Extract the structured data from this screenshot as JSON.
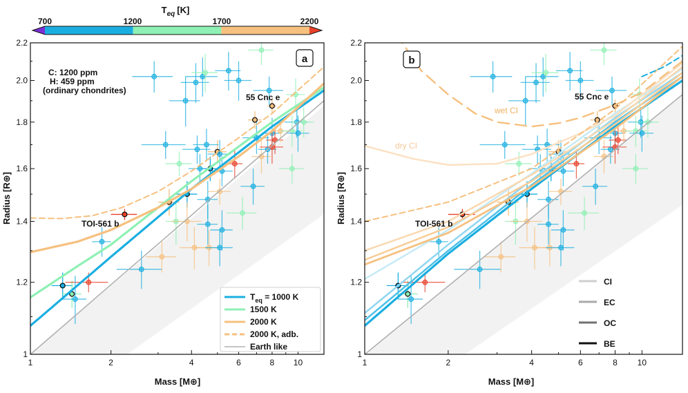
{
  "colorbar": {
    "title": "T_eq [K]",
    "title_main": "T",
    "title_sub": "eq",
    "title_unit": "[K]",
    "ticks": [
      "700",
      "1200",
      "1700",
      "2200"
    ],
    "segments": [
      {
        "from": 700,
        "to": 1200,
        "color": "#1aaee0"
      },
      {
        "from": 1200,
        "to": 1700,
        "color": "#8ef0b4"
      },
      {
        "from": 1700,
        "to": 2200,
        "color": "#f6c07f"
      }
    ],
    "extend_low_color": "#7b2fd6",
    "extend_high_color": "#e8412a"
  },
  "chart_data": [
    {
      "type": "scatter",
      "panel_label": "a",
      "xlabel": "Mass [M⊕]",
      "ylabel": "Radius [R⊕]",
      "xscale": "log",
      "yscale": "log",
      "xlim": [
        1,
        12.5
      ],
      "ylim": [
        1,
        2.2
      ],
      "xticks": [
        "1",
        "2",
        "4",
        "6",
        "8",
        "10"
      ],
      "yticks": [
        "1",
        "1.2",
        "1.4",
        "1.6",
        "1.8",
        "2.0",
        "2.2"
      ],
      "composition_note": [
        "C: 1200 ppm",
        "H: 459 ppm",
        "(ordinary chondrites)"
      ],
      "annotations": [
        "55 Cnc e",
        "TOI-561 b"
      ],
      "legend": {
        "position": "bottom-right",
        "entries": [
          {
            "label_main": "T",
            "label_sub": "eq",
            "label_rest": " = 1000 K",
            "color": "#1aaee0",
            "dash": "solid"
          },
          {
            "label_main": "1500 K",
            "label_sub": "",
            "label_rest": "",
            "color": "#8ef0b4",
            "dash": "solid"
          },
          {
            "label_main": "2000 K",
            "label_sub": "",
            "label_rest": "",
            "color": "#f6c07f",
            "dash": "solid"
          },
          {
            "label_main": "2000 K, adb.",
            "label_sub": "",
            "label_rest": "",
            "color": "#f6c07f",
            "dash": "dashed"
          },
          {
            "label_main": "Earth like",
            "label_sub": "",
            "label_rest": "",
            "color": "#b0b0b0",
            "dash": "solid"
          }
        ]
      },
      "series": [
        {
          "name": "Earth like",
          "color": "#b0b0b0",
          "width": 1.6,
          "dash": "solid",
          "x": [
            1,
            12.5
          ],
          "y": [
            1.0,
            1.9
          ]
        },
        {
          "name": "Teq = 1000 K",
          "color": "#1aaee0",
          "width": 3.2,
          "dash": "solid",
          "x": [
            1,
            2,
            4,
            8,
            12.5
          ],
          "y": [
            1.075,
            1.28,
            1.52,
            1.78,
            1.95
          ]
        },
        {
          "name": "1500 K",
          "color": "#8ef0b4",
          "width": 3.2,
          "dash": "solid",
          "x": [
            1,
            1.5,
            2,
            4,
            8,
            12.5
          ],
          "y": [
            1.155,
            1.25,
            1.32,
            1.55,
            1.8,
            1.965
          ]
        },
        {
          "name": "2000 K",
          "color": "#f6c07f",
          "width": 3.2,
          "dash": "solid",
          "x": [
            1,
            1.5,
            2,
            3,
            4,
            6,
            8,
            12.5
          ],
          "y": [
            1.295,
            1.33,
            1.37,
            1.45,
            1.52,
            1.65,
            1.76,
            1.985
          ]
        },
        {
          "name": "2000 K, adb.",
          "color": "#f6c07f",
          "width": 2,
          "dash": "dashed",
          "x": [
            1,
            1.3,
            1.7,
            2.2,
            3,
            4,
            6,
            8,
            12.5
          ],
          "y": [
            1.412,
            1.41,
            1.42,
            1.45,
            1.51,
            1.59,
            1.73,
            1.84,
            2.07
          ]
        }
      ]
    },
    {
      "type": "scatter",
      "panel_label": "b",
      "xlabel": "Mass [M⊕]",
      "ylabel": "Radius [R⊕]",
      "xscale": "log",
      "yscale": "log",
      "xlim": [
        1,
        14
      ],
      "ylim": [
        1,
        2.2
      ],
      "xticks": [
        "1",
        "2",
        "4",
        "6",
        "8",
        "10"
      ],
      "yticks": [
        "1",
        "1.2",
        "1.4",
        "1.6",
        "1.8",
        "2.0",
        "2.2"
      ],
      "annotations": [
        "55 Cnc e",
        "TOI-561 b",
        "wet CI",
        "dry CI"
      ],
      "legend": {
        "position": "bottom-right",
        "entries": [
          {
            "label": "CI",
            "color": "#cfcfcf"
          },
          {
            "label": "EC",
            "color": "#a9a9a9"
          },
          {
            "label": "OC",
            "color": "#707070"
          },
          {
            "label": "BE",
            "color": "#111111"
          }
        ]
      },
      "series": [
        {
          "name": "Earth like",
          "color": "#b0b0b0",
          "width": 1.6,
          "dash": "solid",
          "x": [
            1,
            14
          ],
          "y": [
            1.0,
            1.93
          ]
        },
        {
          "name": "1000 K BE",
          "color": "#1aaee0",
          "width": 3.2,
          "dash": "solid",
          "x": [
            1,
            2,
            4,
            8,
            14
          ],
          "y": [
            1.075,
            1.29,
            1.52,
            1.78,
            2.0
          ]
        },
        {
          "name": "1000 K OC",
          "color": "#4cc0e8",
          "width": 2.5,
          "dash": "solid",
          "x": [
            1,
            2,
            4,
            8,
            14
          ],
          "y": [
            1.09,
            1.3,
            1.535,
            1.8,
            2.02
          ]
        },
        {
          "name": "1000 K EC",
          "color": "#8fd6f0",
          "width": 2.5,
          "dash": "solid",
          "x": [
            1,
            2,
            4,
            8,
            14
          ],
          "y": [
            1.11,
            1.32,
            1.555,
            1.82,
            2.04
          ]
        },
        {
          "name": "1000 K CI",
          "color": "#c6eaf7",
          "width": 2.5,
          "dash": "solid",
          "x": [
            1,
            2,
            4,
            8,
            14
          ],
          "y": [
            1.21,
            1.37,
            1.58,
            1.84,
            2.06
          ]
        },
        {
          "name": "2000 K BE",
          "color": "#f6c07f",
          "width": 2.8,
          "dash": "solid",
          "x": [
            1,
            2,
            4,
            8,
            14
          ],
          "y": [
            1.255,
            1.36,
            1.53,
            1.77,
            2.02
          ]
        },
        {
          "name": "2000 K OC",
          "color": "#f8cc96",
          "width": 2.5,
          "dash": "solid",
          "x": [
            1,
            2,
            4,
            8,
            14
          ],
          "y": [
            1.27,
            1.38,
            1.55,
            1.79,
            2.04
          ]
        },
        {
          "name": "2000 K EC",
          "color": "#fad8b0",
          "width": 2.5,
          "dash": "solid",
          "x": [
            1,
            2,
            4,
            8,
            14
          ],
          "y": [
            1.3,
            1.4,
            1.575,
            1.81,
            2.07
          ]
        },
        {
          "name": "dry CI",
          "color": "#fbe1c4",
          "width": 2.5,
          "dash": "solid",
          "x": [
            1,
            1.5,
            2,
            3,
            4,
            6,
            8,
            14
          ],
          "y": [
            1.695,
            1.64,
            1.615,
            1.62,
            1.66,
            1.75,
            1.83,
            2.09
          ]
        },
        {
          "name": "wet CI",
          "color": "#f6c07f",
          "width": 2.4,
          "dash": "dashed",
          "x": [
            1.3,
            1.6,
            2,
            2.5,
            3,
            4,
            5,
            6,
            8,
            10,
            14
          ],
          "y": [
            2.25,
            2.05,
            1.93,
            1.84,
            1.8,
            1.78,
            1.795,
            1.82,
            1.88,
            1.94,
            2.1
          ]
        },
        {
          "name": "adb. dashed",
          "color": "#f6c07f",
          "width": 2,
          "dash": "dashed",
          "x": [
            1,
            2,
            4,
            8,
            14
          ],
          "y": [
            1.4,
            1.47,
            1.6,
            1.86,
            2.18
          ]
        },
        {
          "name": "teal dashed",
          "color": "#1aaee0",
          "width": 2,
          "dash": "dashed",
          "x": [
            10,
            12,
            14
          ],
          "y": [
            2.02,
            2.07,
            2.13
          ]
        }
      ]
    }
  ],
  "planets": [
    {
      "m": 2.25,
      "r": 1.425,
      "dm": 0.25,
      "dr": 0.02,
      "c": "#e8412a",
      "hl": true
    },
    {
      "m": 8.0,
      "r": 1.875,
      "dm": 0.3,
      "dr": 0.03,
      "c": "#f6c07f",
      "hl": true
    },
    {
      "m": 6.9,
      "r": 1.81,
      "dm": 0.4,
      "dr": 0.04,
      "c": "#f6c07f",
      "hl": true
    },
    {
      "m": 5.0,
      "r": 1.67,
      "dm": 0.4,
      "dr": 0.05,
      "c": "#f6c07f",
      "hl": true
    },
    {
      "m": 4.7,
      "r": 1.6,
      "dm": 0.35,
      "dr": 0.05,
      "c": "#1aaee0",
      "hl": true
    },
    {
      "m": 3.85,
      "r": 1.5,
      "dm": 0.35,
      "dr": 0.05,
      "c": "#1aaee0",
      "hl": true
    },
    {
      "m": 3.3,
      "r": 1.47,
      "dm": 0.3,
      "dr": 0.05,
      "c": "#f6c07f",
      "hl": true
    },
    {
      "m": 1.32,
      "r": 1.19,
      "dm": 0.12,
      "dr": 0.04,
      "c": "#1aaee0",
      "hl": true
    },
    {
      "m": 1.43,
      "r": 1.165,
      "dm": 0.12,
      "dr": 0.04,
      "c": "#8ef0b4",
      "hl": true
    },
    {
      "m": 1.65,
      "r": 1.2,
      "dm": 0.3,
      "dr": 0.03,
      "c": "#e8412a",
      "hl": false
    },
    {
      "m": 1.85,
      "r": 1.33,
      "dm": 0.15,
      "dr": 0.05,
      "c": "#1aaee0",
      "hl": false
    },
    {
      "m": 1.47,
      "r": 1.15,
      "dm": 0.15,
      "dr": 0.07,
      "c": "#1aaee0",
      "hl": false
    },
    {
      "m": 2.6,
      "r": 1.24,
      "dm": 0.5,
      "dr": 0.06,
      "c": "#1aaee0",
      "hl": false
    },
    {
      "m": 3.1,
      "r": 1.28,
      "dm": 0.4,
      "dr": 0.05,
      "c": "#f6c07f",
      "hl": false
    },
    {
      "m": 2.9,
      "r": 2.02,
      "dm": 0.5,
      "dr": 0.08,
      "c": "#1aaee0",
      "hl": false
    },
    {
      "m": 3.2,
      "r": 1.7,
      "dm": 0.6,
      "dr": 0.06,
      "c": "#1aaee0",
      "hl": false
    },
    {
      "m": 3.6,
      "r": 1.62,
      "dm": 0.4,
      "dr": 0.05,
      "c": "#8ef0b4",
      "hl": false
    },
    {
      "m": 3.5,
      "r": 1.4,
      "dm": 0.3,
      "dr": 0.08,
      "c": "#8ef0b4",
      "hl": false
    },
    {
      "m": 3.85,
      "r": 1.4,
      "dm": 0.5,
      "dr": 0.07,
      "c": "#f6c07f",
      "hl": false
    },
    {
      "m": 3.8,
      "r": 1.9,
      "dm": 0.5,
      "dr": 0.12,
      "c": "#1aaee0",
      "hl": false
    },
    {
      "m": 4.1,
      "r": 1.31,
      "dm": 0.5,
      "dr": 0.07,
      "c": "#f6c07f",
      "hl": false
    },
    {
      "m": 4.15,
      "r": 1.99,
      "dm": 0.5,
      "dr": 0.1,
      "c": "#1aaee0",
      "hl": false
    },
    {
      "m": 4.2,
      "r": 1.68,
      "dm": 0.5,
      "dr": 0.06,
      "c": "#1aaee0",
      "hl": false
    },
    {
      "m": 4.3,
      "r": 1.6,
      "dm": 0.4,
      "dr": 0.06,
      "c": "#1aaee0",
      "hl": false
    },
    {
      "m": 4.4,
      "r": 2.02,
      "dm": 0.6,
      "dr": 0.1,
      "c": "#1aaee0",
      "hl": false
    },
    {
      "m": 4.5,
      "r": 2.04,
      "dm": 0.5,
      "dr": 0.1,
      "c": "#8ef0b4",
      "hl": false
    },
    {
      "m": 4.55,
      "r": 1.7,
      "dm": 0.5,
      "dr": 0.07,
      "c": "#1aaee0",
      "hl": false
    },
    {
      "m": 4.6,
      "r": 1.48,
      "dm": 0.4,
      "dr": 0.07,
      "c": "#1aaee0",
      "hl": false
    },
    {
      "m": 4.6,
      "r": 1.39,
      "dm": 0.4,
      "dr": 0.07,
      "c": "#1aaee0",
      "hl": false
    },
    {
      "m": 4.65,
      "r": 1.31,
      "dm": 0.5,
      "dr": 0.06,
      "c": "#f6c07f",
      "hl": false
    },
    {
      "m": 5.1,
      "r": 1.66,
      "dm": 0.5,
      "dr": 0.06,
      "c": "#1aaee0",
      "hl": false
    },
    {
      "m": 5.1,
      "r": 1.51,
      "dm": 0.5,
      "dr": 0.05,
      "c": "#f6c07f",
      "hl": false
    },
    {
      "m": 5.2,
      "r": 1.37,
      "dm": 0.5,
      "dr": 0.07,
      "c": "#1aaee0",
      "hl": false
    },
    {
      "m": 5.1,
      "r": 1.31,
      "dm": 0.6,
      "dr": 0.06,
      "c": "#1aaee0",
      "hl": false
    },
    {
      "m": 5.5,
      "r": 2.05,
      "dm": 0.6,
      "dr": 0.1,
      "c": "#1aaee0",
      "hl": false
    },
    {
      "m": 5.2,
      "r": 1.59,
      "dm": 0.5,
      "dr": 0.06,
      "c": "#1aaee0",
      "hl": false
    },
    {
      "m": 5.8,
      "r": 1.62,
      "dm": 0.4,
      "dr": 0.06,
      "c": "#e8412a",
      "hl": false
    },
    {
      "m": 6.0,
      "r": 2.0,
      "dm": 0.7,
      "dr": 0.1,
      "c": "#1aaee0",
      "hl": false
    },
    {
      "m": 6.2,
      "r": 1.43,
      "dm": 0.8,
      "dr": 0.06,
      "c": "#8ef0b4",
      "hl": false
    },
    {
      "m": 6.8,
      "r": 1.53,
      "dm": 0.7,
      "dr": 0.07,
      "c": "#1aaee0",
      "hl": false
    },
    {
      "m": 7.0,
      "r": 1.73,
      "dm": 0.8,
      "dr": 0.07,
      "c": "#1aaee0",
      "hl": false
    },
    {
      "m": 7.3,
      "r": 2.16,
      "dm": 0.8,
      "dr": 0.08,
      "c": "#8ef0b4",
      "hl": false
    },
    {
      "m": 7.3,
      "r": 1.65,
      "dm": 0.6,
      "dr": 0.07,
      "c": "#f6c07f",
      "hl": false
    },
    {
      "m": 7.7,
      "r": 1.68,
      "dm": 0.6,
      "dr": 0.06,
      "c": "#1aaee0",
      "hl": false
    },
    {
      "m": 8.0,
      "r": 1.75,
      "dm": 0.7,
      "dr": 0.07,
      "c": "#1aaee0",
      "hl": false
    },
    {
      "m": 8.2,
      "r": 1.72,
      "dm": 0.6,
      "dr": 0.06,
      "c": "#e8412a",
      "hl": false
    },
    {
      "m": 8.0,
      "r": 1.69,
      "dm": 0.8,
      "dr": 0.07,
      "c": "#e8412a",
      "hl": false
    },
    {
      "m": 8.6,
      "r": 1.76,
      "dm": 0.6,
      "dr": 0.05,
      "c": "#f6c07f",
      "hl": false
    },
    {
      "m": 9.5,
      "r": 1.76,
      "dm": 0.9,
      "dr": 0.07,
      "c": "#8ef0b4",
      "hl": false
    },
    {
      "m": 9.9,
      "r": 1.8,
      "dm": 1.0,
      "dr": 0.07,
      "c": "#1aaee0",
      "hl": false
    },
    {
      "m": 9.8,
      "r": 1.93,
      "dm": 0.8,
      "dr": 0.08,
      "c": "#8ef0b4",
      "hl": false
    },
    {
      "m": 10.0,
      "r": 1.75,
      "dm": 1.0,
      "dr": 0.08,
      "c": "#1aaee0",
      "hl": false
    },
    {
      "m": 10.5,
      "r": 1.8,
      "dm": 1.0,
      "dr": 0.07,
      "c": "#8ef0b4",
      "hl": false
    },
    {
      "m": 9.5,
      "r": 1.6,
      "dm": 1.0,
      "dr": 0.06,
      "c": "#8ef0b4",
      "hl": false
    },
    {
      "m": 7.8,
      "r": 1.95,
      "dm": 1.0,
      "dr": 0.07,
      "c": "#1aaee0",
      "hl": false
    }
  ]
}
